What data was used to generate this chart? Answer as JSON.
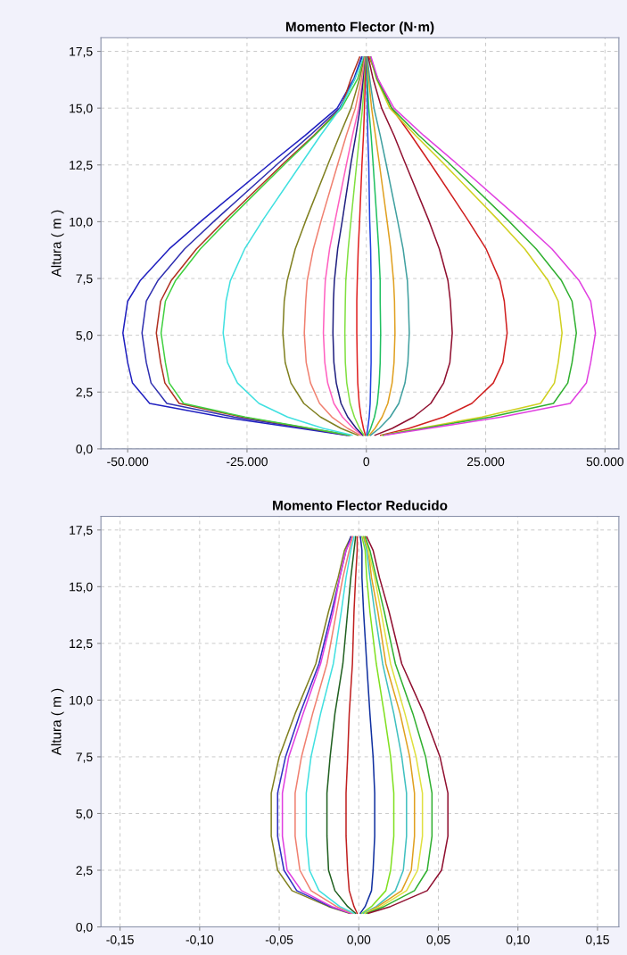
{
  "chart_data": [
    {
      "type": "line",
      "orientation": "horizontal",
      "title": "Momento Flector (N·m)",
      "ylabel": "Altura ( m )",
      "grid": true,
      "xlim": [
        -55600,
        52900
      ],
      "ylim": [
        0,
        18.1
      ],
      "xticks": [
        {
          "value": -50000,
          "label": "-50.000"
        },
        {
          "value": -25000,
          "label": "-25.000"
        },
        0,
        {
          "value": 25000,
          "label": "25.000"
        },
        {
          "value": 50000,
          "label": "50.000"
        }
      ],
      "yticks": [
        {
          "value": 0,
          "label": "0,0"
        },
        {
          "value": 2.5,
          "label": "2,5"
        },
        {
          "value": 5,
          "label": "5,0"
        },
        {
          "value": 7.5,
          "label": "7,5"
        },
        {
          "value": 10,
          "label": "10,0"
        },
        {
          "value": 12.5,
          "label": "12,5"
        },
        {
          "value": 15,
          "label": "15,0"
        },
        {
          "value": 17.5,
          "label": "17,5"
        }
      ],
      "x": [
        0.6,
        0.9,
        1.4,
        2.0,
        2.9,
        3.8,
        5.1,
        6.5,
        7.4,
        8.8,
        10.1,
        12.6,
        13.8,
        15.0,
        16.3,
        17.25
      ],
      "series": [
        {
          "color": "#2020c0",
          "values": [
            -4100,
            -13800,
            -30100,
            -45400,
            -49000,
            -50000,
            -51000,
            -50000,
            -47400,
            -41300,
            -34200,
            -19900,
            -12800,
            -6100,
            -2600,
            -1000
          ]
        },
        {
          "color": "#3030b0",
          "values": [
            -3800,
            -12700,
            -27700,
            -41800,
            -45100,
            -46100,
            -47000,
            -46100,
            -43700,
            -38100,
            -31500,
            -18300,
            -11800,
            -5600,
            -2400,
            -900
          ]
        },
        {
          "color": "#b03020",
          "values": [
            -3500,
            -11900,
            -26000,
            -39200,
            -42200,
            -43100,
            -44000,
            -43100,
            -40900,
            -35600,
            -29500,
            -17200,
            -11000,
            -5300,
            -3200,
            -1400
          ]
        },
        {
          "color": "#40d040",
          "values": [
            -3400,
            -11600,
            -25400,
            -38300,
            -41300,
            -42100,
            -43000,
            -42100,
            -40000,
            -34800,
            -28800,
            -16800,
            -10800,
            -5200,
            -1800,
            -500
          ]
        },
        {
          "color": "#40e0e0",
          "values": [
            -3000,
            -9000,
            -16500,
            -22500,
            -27000,
            -29100,
            -30000,
            -29400,
            -28500,
            -25500,
            -21600,
            -13500,
            -9600,
            -5400,
            -2400,
            -600
          ]
        },
        {
          "color": "#808020",
          "values": [
            -1800,
            -5300,
            -9600,
            -13100,
            -15800,
            -17000,
            -17500,
            -17200,
            -16600,
            -14900,
            -12600,
            -7900,
            -5600,
            -3200,
            -1400,
            -400
          ]
        },
        {
          "color": "#f08070",
          "values": [
            -1300,
            -3900,
            -7200,
            -9800,
            -11700,
            -12600,
            -13000,
            -12700,
            -12400,
            -11100,
            -9400,
            -5900,
            -4200,
            -2300,
            -1000,
            -300
          ]
        },
        {
          "color": "#ff60c0",
          "values": [
            -900,
            -2700,
            -5000,
            -6800,
            -8100,
            -8700,
            -9000,
            -8800,
            -8600,
            -7700,
            -6500,
            -4100,
            -2900,
            -1600,
            -700,
            -200
          ]
        },
        {
          "color": "#202080",
          "values": [
            -700,
            -2100,
            -3900,
            -5300,
            -6300,
            -6800,
            -7000,
            -6900,
            -6700,
            -6000,
            -5000,
            -3200,
            -2200,
            -1300,
            -600,
            -100
          ]
        },
        {
          "color": "#80e040",
          "values": [
            -500,
            -1400,
            -2500,
            -3400,
            -4100,
            -4400,
            -4500,
            -4400,
            -4300,
            -3800,
            -3200,
            -2000,
            -1400,
            -800,
            -400,
            -100
          ]
        },
        {
          "color": "#e02020",
          "values": [
            -200,
            -600,
            -1100,
            -1500,
            -1800,
            -1900,
            -2000,
            -2000,
            -1900,
            -1700,
            -1400,
            -900,
            -600,
            -400,
            -200,
            0
          ]
        },
        {
          "color": "#2040e0",
          "values": [
            100,
            300,
            600,
            800,
            900,
            1000,
            1000,
            1000,
            1000,
            900,
            700,
            500,
            300,
            200,
            100,
            0
          ]
        },
        {
          "color": "#20c060",
          "values": [
            300,
            900,
            1700,
            2300,
            2700,
            2900,
            3000,
            2900,
            2900,
            2600,
            2200,
            1400,
            1000,
            500,
            200,
            100
          ]
        },
        {
          "color": "#e0a020",
          "values": [
            600,
            1800,
            3300,
            4500,
            5400,
            5800,
            6000,
            5900,
            5700,
            5100,
            4300,
            2700,
            1900,
            1100,
            500,
            100
          ]
        },
        {
          "color": "#40a0a0",
          "values": [
            900,
            2700,
            5000,
            6800,
            8100,
            8700,
            9000,
            8800,
            8600,
            7700,
            6500,
            4100,
            2900,
            1600,
            700,
            200
          ]
        },
        {
          "color": "#901030",
          "values": [
            1800,
            5400,
            9900,
            13500,
            16200,
            17500,
            18000,
            17600,
            17100,
            15300,
            13000,
            8100,
            5800,
            3200,
            1400,
            400
          ]
        },
        {
          "color": "#d02020",
          "values": [
            3000,
            8900,
            16200,
            22100,
            26600,
            28600,
            29500,
            28900,
            28000,
            25100,
            21200,
            13300,
            9400,
            5300,
            2400,
            600
          ]
        },
        {
          "color": "#d0d020",
          "values": [
            3300,
            11100,
            24200,
            36500,
            39400,
            40200,
            41000,
            40200,
            38100,
            33200,
            27500,
            16000,
            10300,
            4900,
            2100,
            800
          ]
        },
        {
          "color": "#30b030",
          "values": [
            3500,
            11900,
            26000,
            39200,
            42200,
            43100,
            44000,
            43100,
            40900,
            35600,
            29500,
            17200,
            11000,
            5300,
            2200,
            900
          ]
        },
        {
          "color": "#e040e0",
          "values": [
            3800,
            13000,
            28300,
            42700,
            46100,
            47000,
            48000,
            47000,
            44600,
            38900,
            32200,
            18700,
            12000,
            5800,
            2400,
            1000
          ]
        }
      ]
    },
    {
      "type": "line",
      "orientation": "horizontal",
      "title": "Momento Flector Reducido",
      "ylabel": "Altura ( m )",
      "grid": true,
      "xlim": [
        -0.162,
        0.1634
      ],
      "ylim": [
        0,
        18.1
      ],
      "xticks": [
        {
          "value": -0.15,
          "label": "-0,15"
        },
        {
          "value": -0.1,
          "label": "-0,10"
        },
        {
          "value": -0.05,
          "label": "-0,05"
        },
        {
          "value": 0,
          "label": "0,00"
        },
        {
          "value": 0.05,
          "label": "0,05"
        },
        {
          "value": 0.1,
          "label": "0,10"
        },
        {
          "value": 0.15,
          "label": "0,15"
        }
      ],
      "yticks": [
        {
          "value": 0,
          "label": "0,0"
        },
        {
          "value": 2.5,
          "label": "2,5"
        },
        {
          "value": 5,
          "label": "5,0"
        },
        {
          "value": 7.5,
          "label": "7,5"
        },
        {
          "value": 10,
          "label": "10,0"
        },
        {
          "value": 12.5,
          "label": "12,5"
        },
        {
          "value": 15,
          "label": "15,0"
        },
        {
          "value": 17.5,
          "label": "17,5"
        }
      ],
      "x": [
        0.6,
        0.9,
        1.6,
        2.5,
        4.0,
        5.9,
        7.5,
        9.4,
        11.6,
        13.9,
        15.4,
        16.6,
        17.2
      ],
      "series": [
        {
          "color": "#808020",
          "values": [
            -0.006,
            -0.019,
            -0.042,
            -0.051,
            -0.055,
            -0.055,
            -0.05,
            -0.04,
            -0.027,
            -0.019,
            -0.013,
            -0.009,
            -0.005
          ]
        },
        {
          "color": "#3030c0",
          "values": [
            -0.005,
            -0.018,
            -0.039,
            -0.047,
            -0.051,
            -0.051,
            -0.046,
            -0.037,
            -0.025,
            -0.017,
            -0.012,
            -0.008,
            -0.005
          ]
        },
        {
          "color": "#e040e0",
          "values": [
            -0.005,
            -0.017,
            -0.036,
            -0.045,
            -0.048,
            -0.048,
            -0.044,
            -0.035,
            -0.024,
            -0.016,
            -0.012,
            -0.008,
            -0.004
          ]
        },
        {
          "color": "#f08070",
          "values": [
            -0.004,
            -0.014,
            -0.03,
            -0.037,
            -0.04,
            -0.04,
            -0.036,
            -0.029,
            -0.02,
            -0.014,
            -0.01,
            -0.006,
            -0.004
          ]
        },
        {
          "color": "#40e0e0",
          "values": [
            -0.003,
            -0.012,
            -0.025,
            -0.031,
            -0.033,
            -0.033,
            -0.03,
            -0.024,
            -0.016,
            -0.011,
            -0.008,
            -0.005,
            -0.003
          ]
        },
        {
          "color": "#206020",
          "values": [
            -0.002,
            -0.007,
            -0.015,
            -0.019,
            -0.02,
            -0.02,
            -0.018,
            -0.015,
            -0.01,
            -0.007,
            -0.005,
            -0.003,
            -0.002
          ]
        },
        {
          "color": "#c02020",
          "values": [
            -0.001,
            -0.003,
            -0.006,
            -0.007,
            -0.008,
            -0.008,
            -0.007,
            -0.006,
            -0.004,
            -0.003,
            -0.002,
            -0.001,
            -0.001
          ]
        },
        {
          "color": "#1030a0",
          "values": [
            0.001,
            0.004,
            0.008,
            0.009,
            0.01,
            0.01,
            0.009,
            0.007,
            0.005,
            0.003,
            0.002,
            0.002,
            0.001
          ]
        },
        {
          "color": "#80e020",
          "values": [
            0.002,
            0.008,
            0.017,
            0.02,
            0.022,
            0.022,
            0.02,
            0.016,
            0.011,
            0.007,
            0.005,
            0.004,
            0.002
          ]
        },
        {
          "color": "#40c0c0",
          "values": [
            0.003,
            0.011,
            0.023,
            0.028,
            0.03,
            0.03,
            0.027,
            0.022,
            0.015,
            0.01,
            0.007,
            0.005,
            0.003
          ]
        },
        {
          "color": "#e0a020",
          "values": [
            0.004,
            0.012,
            0.027,
            0.033,
            0.035,
            0.035,
            0.032,
            0.026,
            0.017,
            0.012,
            0.008,
            0.006,
            0.003
          ]
        },
        {
          "color": "#e0e040",
          "values": [
            0.004,
            0.014,
            0.03,
            0.037,
            0.04,
            0.04,
            0.036,
            0.029,
            0.02,
            0.014,
            0.01,
            0.006,
            0.004
          ]
        },
        {
          "color": "#30b030",
          "values": [
            0.005,
            0.016,
            0.035,
            0.043,
            0.046,
            0.046,
            0.042,
            0.034,
            0.023,
            0.016,
            0.011,
            0.007,
            0.004
          ]
        },
        {
          "color": "#901030",
          "values": [
            0.006,
            0.02,
            0.043,
            0.052,
            0.056,
            0.056,
            0.051,
            0.041,
            0.027,
            0.019,
            0.013,
            0.009,
            0.005
          ]
        }
      ]
    }
  ]
}
